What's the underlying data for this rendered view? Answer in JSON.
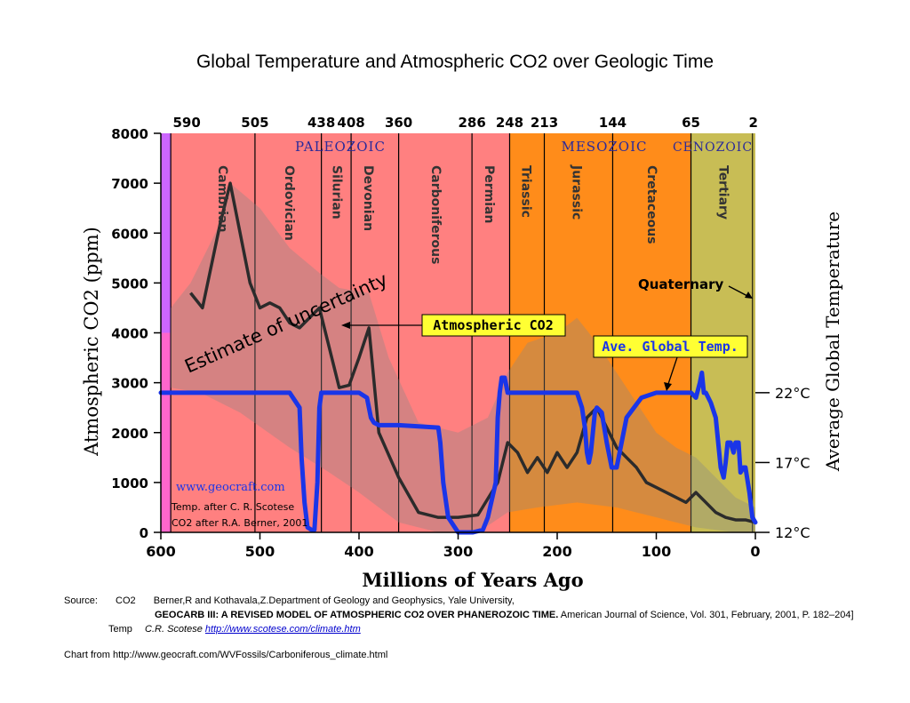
{
  "page": {
    "title": "Global Temperature and Atmospheric CO2 over Geologic Time"
  },
  "chart_data": {
    "type": "line",
    "title": "Global Temperature and Atmospheric CO2 over Geologic Time",
    "xlabel": "Millions of Years Ago",
    "ylabel": "Atmospheric CO2 (ppm)",
    "y2label": "Average Global Temperature",
    "xlim": [
      600,
      0
    ],
    "ylim": [
      0,
      8000
    ],
    "grid": false,
    "x_ticks": [
      600,
      500,
      400,
      300,
      200,
      100,
      0
    ],
    "y_ticks": [
      0,
      1000,
      2000,
      3000,
      4000,
      5000,
      6000,
      7000,
      8000
    ],
    "y2_ticks": [
      {
        "label": "12°C",
        "co2_equiv": 0
      },
      {
        "label": "17°C",
        "co2_equiv": 1400
      },
      {
        "label": "22°C",
        "co2_equiv": 2800
      }
    ],
    "period_boundaries": [
      590,
      505,
      438,
      408,
      360,
      286,
      248,
      213,
      144,
      65,
      2
    ],
    "era_labels": [
      "PALEOZOIC",
      "MESOZOIC",
      "CENOZOIC"
    ],
    "period_labels": [
      "Cambrian",
      "Ordovician",
      "Silurian",
      "Devonian",
      "Carboniferous",
      "Permian",
      "Triassic",
      "Jurassic",
      "Cretaceous",
      "Tertiary"
    ],
    "quaternary_label": "Quaternary",
    "colors": {
      "paleozoic": "#ff8080",
      "mesozoic": "#ff8c1a",
      "cenozoic": "#c8bd55",
      "edge_purple": "#cc66ff",
      "edge_pink": "#ff66cc",
      "co2_line": "#2b2b2b",
      "temp_line": "#1a35e8",
      "uncertainty": "#888888"
    },
    "series": [
      {
        "name": "Atmospheric CO2",
        "x": [
          570,
          558,
          540,
          530,
          520,
          510,
          500,
          490,
          480,
          470,
          460,
          450,
          440,
          430,
          420,
          410,
          400,
          390,
          380,
          360,
          340,
          320,
          300,
          280,
          260,
          250,
          240,
          230,
          220,
          210,
          200,
          190,
          180,
          170,
          160,
          150,
          140,
          130,
          120,
          110,
          100,
          90,
          80,
          70,
          60,
          50,
          40,
          30,
          20,
          10,
          0
        ],
        "values": [
          4800,
          4500,
          6200,
          7000,
          6000,
          5000,
          4500,
          4600,
          4500,
          4200,
          4100,
          4300,
          4500,
          3700,
          2900,
          2950,
          3500,
          4100,
          2000,
          1100,
          400,
          300,
          300,
          350,
          1000,
          1800,
          1600,
          1200,
          1500,
          1200,
          1600,
          1300,
          1600,
          2300,
          2500,
          2100,
          1700,
          1500,
          1300,
          1000,
          900,
          800,
          700,
          600,
          800,
          600,
          400,
          300,
          250,
          250,
          200
        ]
      },
      {
        "name": "Ave. Global Temp.",
        "x": [
          600,
          550,
          500,
          470,
          460,
          458,
          455,
          452,
          448,
          445,
          442,
          440,
          438,
          430,
          400,
          392,
          388,
          385,
          380,
          360,
          320,
          318,
          315,
          310,
          300,
          285,
          275,
          270,
          262,
          260,
          258,
          256,
          253,
          250,
          246,
          230,
          200,
          180,
          175,
          172,
          170,
          168,
          166,
          164,
          162,
          160,
          155,
          150,
          145,
          140,
          130,
          115,
          100,
          80,
          65,
          60,
          56,
          54,
          52,
          50,
          45,
          40,
          38,
          35,
          32,
          30,
          28,
          25,
          22,
          20,
          17,
          15,
          12,
          10,
          6,
          3,
          0
        ],
        "values": [
          2800,
          2800,
          2800,
          2800,
          2500,
          1500,
          600,
          100,
          50,
          50,
          1000,
          2500,
          2800,
          2800,
          2800,
          2700,
          2300,
          2200,
          2150,
          2150,
          2100,
          1800,
          1000,
          300,
          0,
          0,
          50,
          300,
          1000,
          2300,
          2800,
          3100,
          3100,
          2800,
          2800,
          2800,
          2800,
          2800,
          2500,
          2100,
          1600,
          1400,
          1600,
          2000,
          2400,
          2500,
          2400,
          1800,
          1300,
          1300,
          2300,
          2700,
          2800,
          2800,
          2800,
          2700,
          3000,
          3200,
          2800,
          2800,
          2600,
          2300,
          1900,
          1300,
          1100,
          1400,
          1800,
          1800,
          1600,
          1800,
          1800,
          1200,
          1300,
          1300,
          800,
          300,
          200
        ]
      }
    ],
    "annotations": {
      "co2_label": "Atmospheric CO2",
      "temp_label": "Ave. Global Temp.",
      "uncertainty": "Estimate of uncertainty",
      "website": "www.geocraft.com",
      "credit_temp": "Temp. after C. R. Scotese",
      "credit_co2": "CO2 after R.A. Berner, 2001"
    }
  },
  "source": {
    "label": "Source:",
    "co2_label": "CO2",
    "co2_authors": "Berner,R and Kothavala,Z.Department of Geology and Geophysics, Yale University,",
    "co2_title": "GEOCARB III: A REVISED MODEL OF ATMOSPHERIC CO2 OVER PHANEROZOIC TIME.",
    "co2_journal": "American Journal of Science, Vol. 301, February, 2001, P. 182–204]",
    "temp_label": "Temp",
    "temp_author": "C.R. Scotese",
    "temp_url": "http://www.scotese.com/climate.htm",
    "chart_from": "Chart from  http://www.geocraft.com/WVFossils/Carboniferous_climate.html"
  }
}
